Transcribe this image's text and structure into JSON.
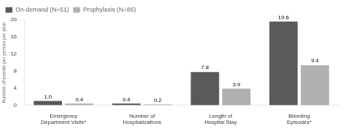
{
  "chart_data": {
    "type": "bar",
    "categories": [
      "Emergency Department Visits*",
      "Number of Hospitalizations",
      "Length of Hospital Stay",
      "Bleeding Episodes*"
    ],
    "series": [
      {
        "name": "On-demand (N=51)",
        "color": "#595959",
        "values": [
          1.0,
          0.4,
          7.8,
          19.6
        ],
        "value_labels": [
          "1.0",
          "0.4",
          "7.8",
          "19.6"
        ]
      },
      {
        "name": "Prophylaxis (N=86)",
        "color": "#b0b0b0",
        "values": [
          0.4,
          0.2,
          3.9,
          9.4
        ],
        "value_labels": [
          "0.4",
          "0.2",
          "3.9",
          "9.4"
        ]
      }
    ],
    "ylabel": "Number of events per person per year",
    "ylim": [
      0,
      20
    ],
    "yticks": [
      0,
      4,
      8,
      12,
      16,
      20
    ],
    "grid": false,
    "legend": "upper left",
    "data_labels": true
  }
}
